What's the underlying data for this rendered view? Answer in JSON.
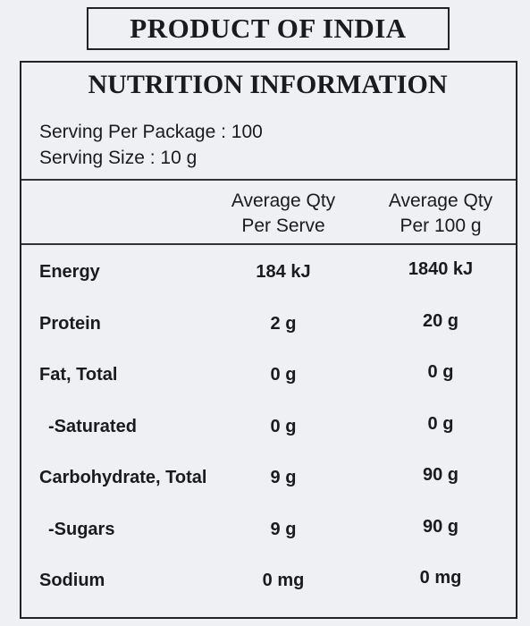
{
  "header": {
    "title": "PRODUCT OF INDIA"
  },
  "nutrition": {
    "title": "NUTRITION INFORMATION",
    "serving_lines": [
      "Serving Per Package : 100",
      "Serving Size : 10 g"
    ]
  },
  "table": {
    "columns": [
      [
        "Average Qty",
        "Per Serve"
      ],
      [
        "Average Qty",
        "Per 100 g"
      ]
    ],
    "rows": [
      [
        "Energy",
        "184 kJ",
        "1840 kJ"
      ],
      [
        "Protein",
        "2 g",
        "20 g"
      ],
      [
        "Fat, Total",
        "0 g",
        "0 g"
      ],
      [
        "-Saturated",
        "0 g",
        "0 g"
      ],
      [
        "Carbohydrate, Total",
        "9 g",
        "90 g"
      ],
      [
        "-Sugars",
        "9 g",
        "90 g"
      ],
      [
        "Sodium",
        "0 mg",
        "0 mg"
      ]
    ]
  }
}
